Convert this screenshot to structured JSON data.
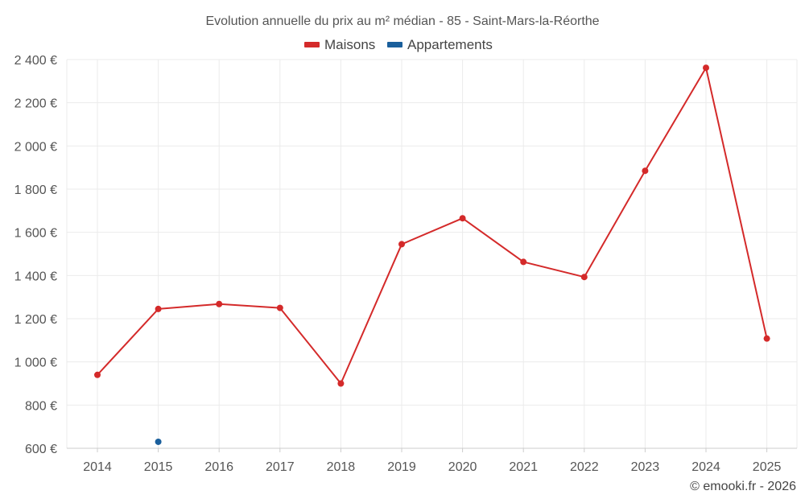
{
  "chart_data": {
    "type": "line",
    "title": "Evolution annuelle du prix au m² médian - 85 - Saint-Mars-la-Réorthe",
    "xlabel": "",
    "ylabel": "",
    "categories": [
      "2014",
      "2015",
      "2016",
      "2017",
      "2018",
      "2019",
      "2020",
      "2021",
      "2022",
      "2023",
      "2024",
      "2025"
    ],
    "ylim": [
      600,
      2400
    ],
    "yticks": [
      600,
      800,
      1000,
      1200,
      1400,
      1600,
      1800,
      2000,
      2200,
      2400
    ],
    "ytick_labels": [
      "600 €",
      "800 €",
      "1 000 €",
      "1 200 €",
      "1 400 €",
      "1 600 €",
      "1 800 €",
      "2 000 €",
      "2 200 €",
      "2 400 €"
    ],
    "grid": true,
    "legend_position": "top-center",
    "series": [
      {
        "name": "Maisons",
        "color": "#d42a2a",
        "values": [
          940,
          1245,
          1268,
          1250,
          900,
          1545,
          1665,
          1463,
          1393,
          1885,
          2362,
          1108
        ]
      },
      {
        "name": "Appartements",
        "color": "#1a5f9c",
        "values": [
          null,
          630,
          null,
          null,
          null,
          null,
          null,
          null,
          null,
          null,
          null,
          null
        ]
      }
    ]
  },
  "credit": "© emooki.fr - 2026"
}
